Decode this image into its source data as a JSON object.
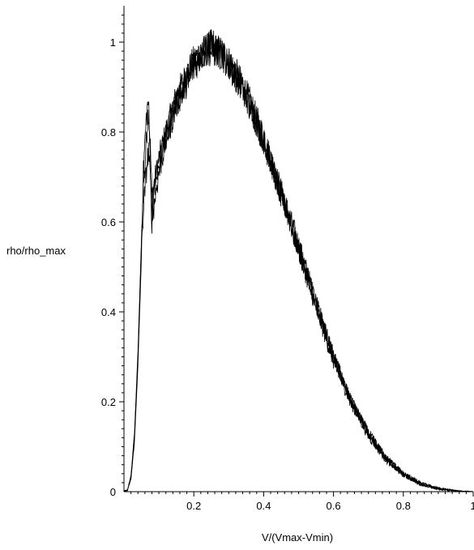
{
  "chart_data": {
    "type": "line",
    "title": "",
    "xlabel": "V/(Vmax-Vmin)",
    "ylabel": "rho/rho_max",
    "xlim": [
      0,
      1
    ],
    "ylim": [
      0,
      1.07
    ],
    "x_ticks": [
      0.2,
      0.4,
      0.6,
      0.8,
      1
    ],
    "x_tick_labels": [
      "0.2",
      "0.4",
      "0.6",
      "0.8",
      "1"
    ],
    "y_ticks": [
      0,
      0.2,
      0.4,
      0.6,
      0.8,
      1
    ],
    "y_tick_labels": [
      "0",
      "0.2",
      "0.4",
      "0.6",
      "0.8",
      "1"
    ],
    "grid": false,
    "legend": false,
    "color": "#000000",
    "series": [
      {
        "x": [
          0,
          0.01,
          0.02,
          0.03,
          0.04,
          0.05,
          0.055,
          0.06,
          0.065,
          0.07,
          0.075,
          0.08,
          0.09,
          0.1,
          0.12,
          0.15,
          0.18,
          0.2,
          0.22,
          0.25,
          0.28,
          0.3,
          0.33,
          0.36,
          0.4,
          0.45,
          0.5,
          0.55,
          0.6,
          0.65,
          0.7,
          0.75,
          0.8,
          0.85,
          0.9,
          0.95,
          1
        ],
        "y": [
          0,
          0.003,
          0.03,
          0.12,
          0.3,
          0.55,
          0.68,
          0.72,
          0.8,
          0.85,
          0.78,
          0.66,
          0.7,
          0.74,
          0.8,
          0.88,
          0.93,
          0.96,
          0.98,
          0.99,
          0.98,
          0.96,
          0.92,
          0.87,
          0.79,
          0.67,
          0.55,
          0.42,
          0.3,
          0.2,
          0.13,
          0.075,
          0.04,
          0.018,
          0.007,
          0.002,
          0.0
        ]
      },
      {
        "x": [
          0,
          0.01,
          0.02,
          0.03,
          0.04,
          0.05,
          0.055,
          0.06,
          0.065,
          0.07,
          0.075,
          0.08,
          0.09,
          0.1,
          0.12,
          0.15,
          0.18,
          0.2,
          0.22,
          0.25,
          0.28,
          0.3,
          0.33,
          0.36,
          0.4,
          0.45,
          0.5,
          0.55,
          0.6,
          0.65,
          0.7,
          0.75,
          0.8,
          0.85,
          0.9,
          0.95,
          1
        ],
        "y": [
          0,
          0.004,
          0.035,
          0.13,
          0.31,
          0.56,
          0.7,
          0.78,
          0.84,
          0.87,
          0.74,
          0.63,
          0.68,
          0.72,
          0.79,
          0.87,
          0.92,
          0.95,
          0.97,
          1.0,
          0.97,
          0.95,
          0.91,
          0.86,
          0.78,
          0.66,
          0.54,
          0.41,
          0.29,
          0.2,
          0.125,
          0.072,
          0.038,
          0.017,
          0.006,
          0.002,
          0.0
        ]
      },
      {
        "x": [
          0,
          0.01,
          0.02,
          0.03,
          0.04,
          0.05,
          0.055,
          0.06,
          0.065,
          0.07,
          0.075,
          0.08,
          0.09,
          0.1,
          0.12,
          0.15,
          0.18,
          0.2,
          0.22,
          0.25,
          0.28,
          0.3,
          0.33,
          0.36,
          0.4,
          0.45,
          0.5,
          0.55,
          0.6,
          0.65,
          0.7,
          0.75,
          0.8,
          0.85,
          0.9,
          0.95,
          1
        ],
        "y": [
          0,
          0.003,
          0.028,
          0.11,
          0.28,
          0.52,
          0.62,
          0.67,
          0.72,
          0.76,
          0.7,
          0.6,
          0.66,
          0.71,
          0.78,
          0.86,
          0.91,
          0.94,
          0.97,
          0.98,
          0.97,
          0.95,
          0.91,
          0.86,
          0.78,
          0.66,
          0.54,
          0.42,
          0.3,
          0.2,
          0.13,
          0.074,
          0.04,
          0.018,
          0.007,
          0.002,
          0.0
        ]
      }
    ]
  }
}
